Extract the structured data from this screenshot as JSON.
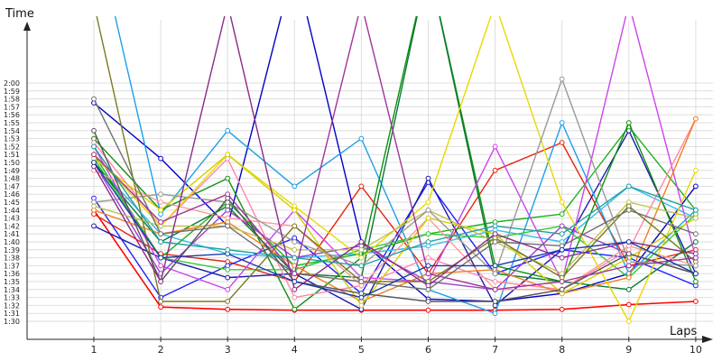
{
  "chart_data": {
    "type": "line",
    "xlabel": "Laps",
    "ylabel": "Time",
    "x": [
      1,
      2,
      3,
      4,
      5,
      6,
      7,
      8,
      9,
      10
    ],
    "x_tick_labels": [
      "1",
      "2",
      "3",
      "4",
      "5",
      "6",
      "7",
      "8",
      "9",
      "10"
    ],
    "ylim": [
      "1:29",
      "2:02"
    ],
    "y_tick_labels": [
      "1:30",
      "1:31",
      "1:32",
      "1:33",
      "1:34",
      "1:35",
      "1:36",
      "1:37",
      "1:38",
      "1:39",
      "1:40",
      "1:41",
      "1:42",
      "1:43",
      "1:44",
      "1:45",
      "1:46",
      "1:47",
      "1:48",
      "1:49",
      "1:50",
      "1:51",
      "1:52",
      "1:53",
      "1:54",
      "1:55",
      "1:56",
      "1:57",
      "1:58",
      "1:59",
      "2:00"
    ],
    "grid": true,
    "legend": "none",
    "series": [
      {
        "color": "#ff0000",
        "values": [
          "1:44",
          "1:31.8",
          "1:31.5",
          "1:31.4",
          "1:31.4",
          "1:31.4",
          "1:31.4",
          "1:31.5",
          "1:32.1",
          "1:32.5"
        ]
      },
      {
        "color": "#e8230f",
        "values": [
          "1:43.5",
          "1:38.5",
          "1:37.5",
          "1:35",
          "1:47",
          "1:36",
          "1:49",
          "1:52.5",
          "1:37",
          "1:39"
        ]
      },
      {
        "color": "#0000c8",
        "values": [
          "1:57.5",
          "1:50.5",
          "1:42",
          "2:15",
          "1:40",
          "1:32.8",
          "1:32.5",
          "1:33.5",
          "1:36",
          "1:47"
        ]
      },
      {
        "color": "#2020ff",
        "values": [
          "1:45.5",
          "1:33",
          "1:37",
          "1:40.5",
          "1:33.5",
          "1:47.5",
          "1:36",
          "1:39",
          "1:38",
          "1:34.5"
        ]
      },
      {
        "color": "#1a1ab0",
        "values": [
          "1:42",
          "1:38",
          "1:35.5",
          "1:36",
          "1:31.5",
          "1:48",
          "1:32",
          "1:39",
          "1:54",
          "1:36"
        ]
      },
      {
        "color": "#1e9fe8",
        "values": [
          "2:20",
          "1:43.5",
          "1:54",
          "1:47",
          "1:53",
          "1:34",
          "1:31",
          "1:55",
          "1:36",
          "1:44"
        ]
      },
      {
        "color": "#33bbee",
        "values": [
          "1:50",
          "1:41",
          "1:38.5",
          "1:38",
          "1:38.5",
          "1:39.5",
          "1:41.5",
          "1:40",
          "1:47",
          "1:43"
        ]
      },
      {
        "color": "#20b020",
        "values": [
          "1:51",
          "1:38",
          "1:45",
          "1:37",
          "1:38.5",
          "1:41",
          "1:42.5",
          "1:43.5",
          "1:54.5",
          "1:44"
        ]
      },
      {
        "color": "#109010",
        "values": [
          "1:53",
          "1:44",
          "1:48",
          "1:31.5",
          "1:38",
          "2:15",
          "1:37",
          "1:35",
          "1:55",
          "1:35"
        ]
      },
      {
        "color": "#37c837",
        "values": [
          "1:50.5",
          "1:38",
          "1:36.5",
          "1:36.5",
          "1:39",
          "1:41",
          "1:40.5",
          "1:42",
          "1:35.5",
          "1:43.5"
        ]
      },
      {
        "color": "#0a7a30",
        "values": [
          "1:50",
          "1:40",
          "1:44.5",
          "1:36",
          "1:35.5",
          "2:15",
          "1:36",
          "1:35",
          "1:34",
          "1:40"
        ]
      },
      {
        "color": "#cc44ee",
        "values": [
          "1:52",
          "1:37",
          "1:34",
          "1:44",
          "1:35.5",
          "1:35",
          "1:52",
          "1:35",
          "2:10",
          "1:38"
        ]
      },
      {
        "color": "#9a40c8",
        "values": [
          "1:50",
          "1:36",
          "1:44",
          "1:38",
          "1:39.5",
          "1:35",
          "1:34",
          "1:42",
          "1:38.5",
          "1:36"
        ]
      },
      {
        "color": "#ff88aa",
        "values": [
          "1:52.5",
          "1:42",
          "1:50.5",
          "1:33",
          "1:34.5",
          "1:38",
          "1:35",
          "1:34",
          "1:39",
          "1:55.5"
        ]
      },
      {
        "color": "#ff9999",
        "values": [
          "1:49",
          "1:45",
          "1:43",
          "1:42",
          "1:34.5",
          "1:43",
          "1:34",
          "1:34",
          "1:39.5",
          "1:37"
        ]
      },
      {
        "color": "#f08020",
        "values": [
          "1:44",
          "1:41",
          "1:42.5",
          "1:37",
          "1:32.5",
          "1:36",
          "1:36.5",
          "1:33.5",
          "1:35.5",
          "1:55.5"
        ]
      },
      {
        "color": "#e8d800",
        "values": [
          "1:51",
          "1:42",
          "1:51",
          "1:44.5",
          "1:38",
          "1:45",
          "2:10",
          "1:45",
          "1:30",
          "1:49"
        ]
      },
      {
        "color": "#d4d000",
        "values": [
          "1:50.5",
          "1:44",
          "1:51",
          "1:44",
          "1:32",
          "1:43",
          "1:41",
          "1:33.5",
          "1:38",
          "1:43"
        ]
      },
      {
        "color": "#c0c050",
        "values": [
          "1:44.5",
          "1:42",
          "1:42",
          "1:39",
          "1:39",
          "1:44",
          "1:40",
          "1:36",
          "1:45",
          "1:43"
        ]
      },
      {
        "color": "#7a7a20",
        "values": [
          "2:10",
          "1:32.5",
          "1:32.5",
          "1:42",
          "1:35",
          "1:35",
          "1:40.5",
          "1:35.5",
          "1:44.5",
          "1:37.5"
        ]
      },
      {
        "color": "#999999",
        "values": [
          "1:45",
          "1:46",
          "1:45",
          "1:40",
          "1:37",
          "1:44",
          "1:36",
          "2:00.5",
          "1:37.5",
          "1:37"
        ]
      },
      {
        "color": "#707070",
        "values": [
          "1:58",
          "1:41",
          "1:42",
          "1:36",
          "1:35",
          "1:34",
          "1:40",
          "1:39.5",
          "1:44",
          "1:41"
        ]
      },
      {
        "color": "#555555",
        "values": [
          "1:54",
          "1:35",
          "1:45.5",
          "1:35",
          "1:33.5",
          "1:32.5",
          "1:32.5",
          "1:34",
          "1:38.5",
          "1:36"
        ]
      },
      {
        "color": "#8a2b8a",
        "values": [
          "1:49.5",
          "1:35",
          "2:10",
          "1:34",
          "1:40",
          "1:34.5",
          "1:41",
          "1:38",
          "1:40",
          "1:38.5"
        ]
      },
      {
        "color": "#a0349b",
        "values": [
          "1:51",
          "1:42.5",
          "1:46",
          "1:36",
          "2:10",
          "1:36",
          "1:34",
          "1:35",
          "1:37",
          "1:38"
        ]
      },
      {
        "color": "#1a3aaa",
        "values": [
          "1:50",
          "1:38",
          "1:38.5",
          "1:35",
          "1:33",
          "1:37",
          "1:37",
          "1:39",
          "1:40",
          "1:36"
        ]
      },
      {
        "color": "#20a0a0",
        "values": [
          "1:52",
          "1:40",
          "1:39",
          "1:38",
          "1:37",
          "1:40",
          "1:42",
          "1:41",
          "1:47",
          "1:44"
        ]
      }
    ]
  }
}
